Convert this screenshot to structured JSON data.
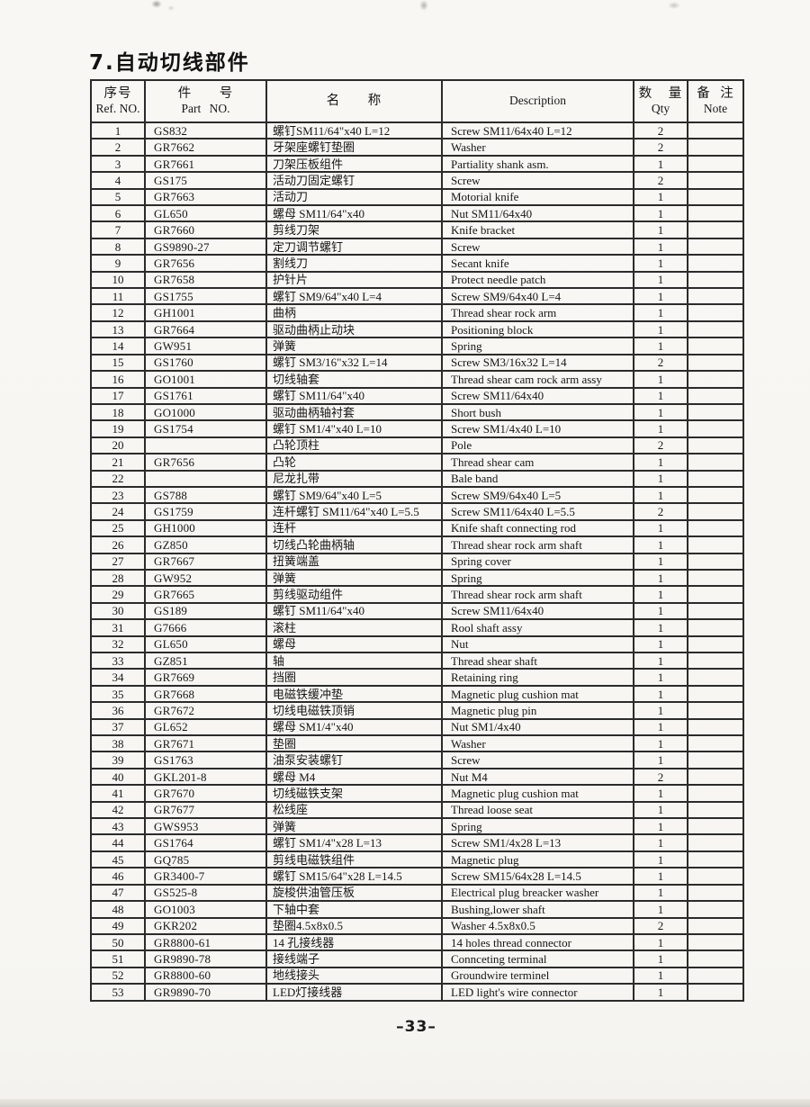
{
  "title": "7.自动切线部件",
  "table": {
    "headers": {
      "ref": {
        "cn": "序号",
        "en": "Ref. NO."
      },
      "part": {
        "cn": "件 号",
        "en": "Part NO."
      },
      "name": {
        "cn": "名 称"
      },
      "desc": {
        "en": "Description"
      },
      "qty": {
        "cn": "数 量",
        "en": "Qty"
      },
      "note": {
        "cn": "备 注",
        "en": "Note"
      }
    },
    "rows": [
      [
        "1",
        "GS832",
        "螺钉SM11/64\"x40 L=12",
        "Screw SM11/64x40 L=12",
        "2",
        ""
      ],
      [
        "2",
        "GR7662",
        "牙架座螺钉垫圈",
        "Washer",
        "2",
        ""
      ],
      [
        "3",
        "GR7661",
        "刀架压板组件",
        "Partiality shank asm.",
        "1",
        ""
      ],
      [
        "4",
        "GS175",
        "活动刀固定螺钉",
        "Screw",
        "2",
        ""
      ],
      [
        "5",
        "GR7663",
        "活动刀",
        "Motorial knife",
        "1",
        ""
      ],
      [
        "6",
        "GL650",
        "螺母 SM11/64\"x40",
        "Nut SM11/64x40",
        "1",
        ""
      ],
      [
        "7",
        "GR7660",
        "剪线刀架",
        "Knife bracket",
        "1",
        ""
      ],
      [
        "8",
        "GS9890-27",
        "定刀调节螺钉",
        "Screw",
        "1",
        ""
      ],
      [
        "9",
        "GR7656",
        "割线刀",
        "Secant knife",
        "1",
        ""
      ],
      [
        "10",
        "GR7658",
        "护针片",
        "Protect needle patch",
        "1",
        ""
      ],
      [
        "11",
        "GS1755",
        "螺钉 SM9/64\"x40 L=4",
        "Screw SM9/64x40 L=4",
        "1",
        ""
      ],
      [
        "12",
        "GH1001",
        "曲柄",
        "Thread shear rock arm",
        "1",
        ""
      ],
      [
        "13",
        "GR7664",
        "驱动曲柄止动块",
        "Positioning block",
        "1",
        ""
      ],
      [
        "14",
        "GW951",
        "弹簧",
        "Spring",
        "1",
        ""
      ],
      [
        "15",
        "GS1760",
        "螺钉 SM3/16\"x32 L=14",
        "Screw SM3/16x32 L=14",
        "2",
        ""
      ],
      [
        "16",
        "GO1001",
        "切线轴套",
        "Thread shear cam rock arm assy",
        "1",
        ""
      ],
      [
        "17",
        "GS1761",
        "螺钉 SM11/64\"x40",
        "Screw SM11/64x40",
        "1",
        ""
      ],
      [
        "18",
        "GO1000",
        "驱动曲柄轴衬套",
        "Short bush",
        "1",
        ""
      ],
      [
        "19",
        "GS1754",
        "螺钉 SM1/4\"x40 L=10",
        "Screw SM1/4x40 L=10",
        "1",
        ""
      ],
      [
        "20",
        "",
        "凸轮顶柱",
        "Pole",
        "2",
        ""
      ],
      [
        "21",
        "GR7656",
        "凸轮",
        "Thread shear cam",
        "1",
        ""
      ],
      [
        "22",
        "",
        "尼龙扎带",
        "Bale band",
        "1",
        ""
      ],
      [
        "23",
        "GS788",
        "螺钉 SM9/64\"x40 L=5",
        "Screw SM9/64x40 L=5",
        "1",
        ""
      ],
      [
        "24",
        "GS1759",
        "连杆螺钉 SM11/64\"x40 L=5.5",
        "Screw SM11/64x40 L=5.5",
        "2",
        ""
      ],
      [
        "25",
        "GH1000",
        "连杆",
        "Knife shaft connecting rod",
        "1",
        ""
      ],
      [
        "26",
        "GZ850",
        "切线凸轮曲柄轴",
        "Thread shear rock arm shaft",
        "1",
        ""
      ],
      [
        "27",
        "GR7667",
        "扭簧端盖",
        "Spring cover",
        "1",
        ""
      ],
      [
        "28",
        "GW952",
        "弹簧",
        "Spring",
        "1",
        ""
      ],
      [
        "29",
        "GR7665",
        "剪线驱动组件",
        "Thread shear rock arm shaft",
        "1",
        ""
      ],
      [
        "30",
        "GS189",
        "螺钉 SM11/64\"x40",
        "Screw SM11/64x40",
        "1",
        ""
      ],
      [
        "31",
        "G7666",
        "滚柱",
        "Rool shaft assy",
        "1",
        ""
      ],
      [
        "32",
        "GL650",
        "螺母",
        "Nut",
        "1",
        ""
      ],
      [
        "33",
        "GZ851",
        "轴",
        "Thread shear shaft",
        "1",
        ""
      ],
      [
        "34",
        "GR7669",
        "挡圈",
        "Retaining ring",
        "1",
        ""
      ],
      [
        "35",
        "GR7668",
        "电磁铁缓冲垫",
        "Magnetic plug cushion mat",
        "1",
        ""
      ],
      [
        "36",
        "GR7672",
        "切线电磁铁顶销",
        "Magnetic plug pin",
        "1",
        ""
      ],
      [
        "37",
        "GL652",
        "螺母 SM1/4\"x40",
        "Nut SM1/4x40",
        "1",
        ""
      ],
      [
        "38",
        "GR7671",
        "垫圈",
        "Washer",
        "1",
        ""
      ],
      [
        "39",
        "GS1763",
        "油泵安装螺钉",
        "Screw",
        "1",
        ""
      ],
      [
        "40",
        "GKL201-8",
        "螺母 M4",
        "Nut M4",
        "2",
        ""
      ],
      [
        "41",
        "GR7670",
        "切线磁铁支架",
        "Magnetic plug cushion mat",
        "1",
        ""
      ],
      [
        "42",
        "GR7677",
        "松线座",
        "Thread loose seat",
        "1",
        ""
      ],
      [
        "43",
        "GWS953",
        "弹簧",
        "Spring",
        "1",
        ""
      ],
      [
        "44",
        "GS1764",
        "螺钉 SM1/4\"x28 L=13",
        "Screw SM1/4x28 L=13",
        "1",
        ""
      ],
      [
        "45",
        "GQ785",
        "剪线电磁铁组件",
        "Magnetic plug",
        "1",
        ""
      ],
      [
        "46",
        "GR3400-7",
        "螺钉 SM15/64\"x28 L=14.5",
        "Screw SM15/64x28 L=14.5",
        "1",
        ""
      ],
      [
        "47",
        "GS525-8",
        "旋梭供油管压板",
        "Electrical plug breacker washer",
        "1",
        ""
      ],
      [
        "48",
        "GO1003",
        "下轴中套",
        "Bushing,lower shaft",
        "1",
        ""
      ],
      [
        "49",
        "GKR202",
        "垫圈4.5x8x0.5",
        "Washer 4.5x8x0.5",
        "2",
        ""
      ],
      [
        "50",
        "GR8800-61",
        "14 孔接线器",
        "14 holes thread connector",
        "1",
        ""
      ],
      [
        "51",
        "GR9890-78",
        "接线端子",
        "Connceting terminal",
        "1",
        ""
      ],
      [
        "52",
        "GR8800-60",
        "地线接头",
        "Groundwire terminel",
        "1",
        ""
      ],
      [
        "53",
        "GR9890-70",
        "LED灯接线器",
        "LED light's wire connector",
        "1",
        ""
      ]
    ]
  },
  "footer": {
    "page_number": "–33–"
  }
}
